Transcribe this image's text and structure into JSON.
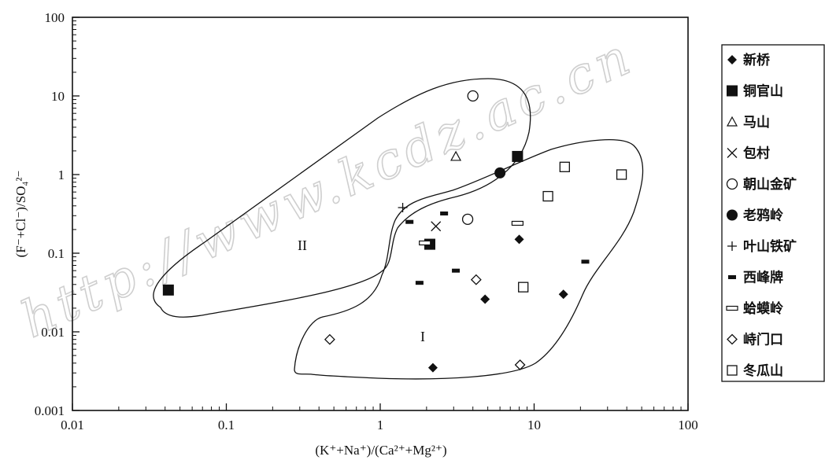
{
  "watermark": "http://www.kcdz.ac.cn",
  "chart_data": {
    "type": "scatter",
    "x_scale": "log",
    "y_scale": "log",
    "xlim": [
      0.01,
      100
    ],
    "ylim": [
      0.001,
      100
    ],
    "x_ticks": [
      "0.01",
      "0.1",
      "1",
      "10",
      "100"
    ],
    "y_ticks": [
      "0.001",
      "0.01",
      "0.1",
      "1",
      "10",
      "100"
    ],
    "xlabel": "(K⁺+Na⁺)/(Ca²⁺+Mg²⁺)",
    "ylabel": "(F⁻+Cl⁻)/SO₄²⁻",
    "regions": [
      {
        "label": "I"
      },
      {
        "label": "II"
      }
    ],
    "legend_position": "right",
    "series": [
      {
        "name": "新桥",
        "marker": "filled-diamond",
        "points": [
          [
            8,
            0.15
          ],
          [
            4.8,
            0.026
          ],
          [
            15.5,
            0.03
          ],
          [
            2.2,
            0.0035
          ]
        ]
      },
      {
        "name": "铜官山",
        "marker": "filled-square",
        "points": [
          [
            0.042,
            0.034
          ],
          [
            2.1,
            0.13
          ],
          [
            7.8,
            1.7
          ]
        ]
      },
      {
        "name": "马山",
        "marker": "open-triangle",
        "points": [
          [
            3.1,
            1.7
          ]
        ]
      },
      {
        "name": "包村",
        "marker": "cross",
        "points": [
          [
            2.3,
            0.22
          ]
        ]
      },
      {
        "name": "朝山金矿",
        "marker": "open-circle",
        "points": [
          [
            4,
            10
          ],
          [
            3.7,
            0.27
          ]
        ]
      },
      {
        "name": "老鸦岭",
        "marker": "filled-circle",
        "points": [
          [
            6,
            1.05
          ]
        ]
      },
      {
        "name": "叶山铁矿",
        "marker": "plus",
        "points": [
          [
            1.4,
            0.38
          ]
        ]
      },
      {
        "name": "西峰牌",
        "marker": "dash",
        "points": [
          [
            1.55,
            0.25
          ],
          [
            2.6,
            0.32
          ],
          [
            1.8,
            0.042
          ],
          [
            3.1,
            0.06
          ],
          [
            21.5,
            0.078
          ]
        ]
      },
      {
        "name": "蛤蟆岭",
        "marker": "open-bar",
        "points": [
          [
            1.95,
            0.135
          ],
          [
            7.8,
            0.24
          ]
        ]
      },
      {
        "name": "峙门口",
        "marker": "open-diamond",
        "points": [
          [
            0.47,
            0.008
          ],
          [
            4.2,
            0.046
          ],
          [
            8.1,
            0.0038
          ]
        ]
      },
      {
        "name": "冬瓜山",
        "marker": "open-square",
        "points": [
          [
            8.5,
            0.037
          ],
          [
            12.3,
            0.53
          ],
          [
            15.8,
            1.25
          ],
          [
            37,
            1.0
          ]
        ]
      }
    ]
  }
}
